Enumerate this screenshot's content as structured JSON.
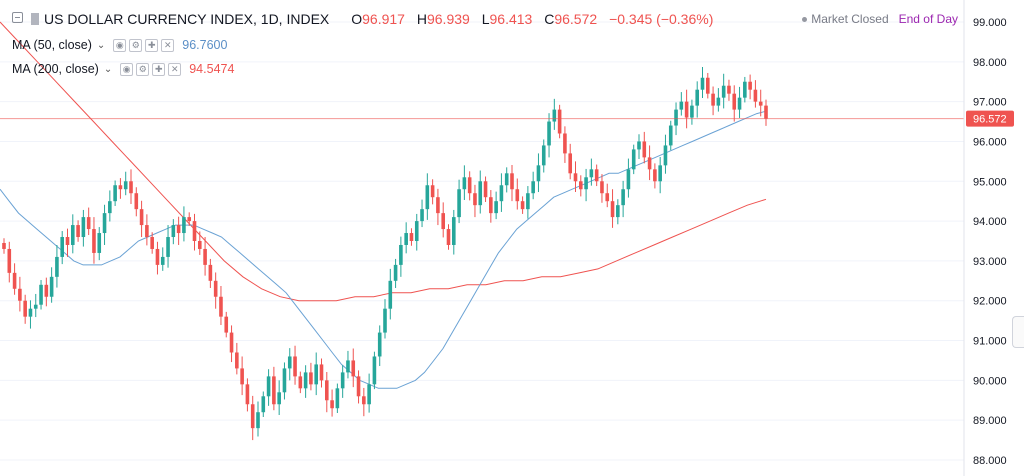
{
  "header": {
    "symbol": "US DOLLAR CURRENCY INDEX, 1D, INDEX",
    "ohlc": [
      {
        "key": "O",
        "value": "96.917"
      },
      {
        "key": "H",
        "value": "96.939"
      },
      {
        "key": "L",
        "value": "96.413"
      },
      {
        "key": "C",
        "value": "96.572"
      }
    ],
    "change": "−0.345 (−0.36%)",
    "market_status": "Market Closed",
    "session_mode": "End of Day"
  },
  "indicators": [
    {
      "label": "MA (50, close)",
      "value": "96.7600",
      "color": "#6aa2d4"
    },
    {
      "label": "MA (200, close)",
      "value": "94.5474",
      "color": "#ef5350"
    }
  ],
  "price_axis": {
    "labels": [
      "99.000",
      "98.000",
      "97.000",
      "96.000",
      "95.000",
      "94.000",
      "93.000",
      "92.000",
      "91.000",
      "90.000",
      "89.000",
      "88.000"
    ],
    "last_price_label": "96.572"
  },
  "colors": {
    "up": "#26a69a",
    "down": "#ef5350",
    "ma50": "#6aa2d4",
    "ma200": "#ef5350",
    "axis_text": "#131722",
    "grid": "#f0f3fa"
  },
  "chart_data": {
    "type": "candlestick",
    "title": "US DOLLAR CURRENCY INDEX, 1D, INDEX",
    "ylim": [
      88,
      99
    ],
    "last_price": 96.572,
    "series": [
      {
        "name": "Close",
        "values": [
          93.3,
          92.7,
          92.3,
          92.0,
          91.6,
          91.8,
          91.9,
          92.4,
          92.1,
          92.6,
          93.1,
          93.6,
          93.4,
          93.9,
          93.6,
          94.1,
          93.8,
          93.2,
          93.7,
          94.2,
          94.5,
          94.9,
          94.8,
          95.0,
          94.7,
          94.3,
          93.9,
          93.6,
          93.3,
          92.9,
          93.1,
          93.6,
          93.9,
          93.7,
          94.1,
          94.0,
          93.5,
          93.3,
          92.9,
          92.5,
          92.1,
          91.6,
          91.2,
          90.7,
          90.3,
          89.9,
          89.4,
          88.8,
          89.2,
          89.6,
          90.1,
          89.4,
          89.7,
          90.3,
          90.6,
          90.1,
          89.8,
          90.2,
          89.9,
          90.4,
          90.0,
          89.5,
          89.3,
          89.8,
          90.2,
          90.5,
          90.1,
          89.6,
          89.4,
          89.9,
          90.6,
          91.2,
          91.8,
          92.5,
          92.9,
          93.4,
          93.7,
          93.5,
          94.0,
          94.3,
          94.9,
          94.6,
          94.2,
          93.8,
          93.4,
          94.1,
          94.8,
          95.1,
          94.7,
          94.4,
          95.0,
          94.6,
          94.2,
          94.5,
          94.9,
          95.2,
          94.8,
          94.5,
          94.3,
          94.7,
          95.0,
          95.4,
          95.9,
          96.5,
          96.8,
          96.2,
          95.7,
          95.2,
          95.0,
          94.8,
          95.1,
          95.3,
          95.0,
          94.7,
          94.5,
          94.1,
          94.4,
          94.8,
          95.3,
          95.8,
          96.0,
          95.6,
          95.3,
          95.0,
          95.4,
          95.9,
          96.4,
          96.8,
          97.0,
          96.6,
          96.9,
          97.3,
          97.6,
          97.2,
          96.9,
          97.1,
          97.4,
          97.2,
          96.8,
          97.1,
          97.5,
          97.3,
          97.0,
          96.9,
          96.572
        ]
      },
      {
        "name": "MA (50, close)",
        "values": [
          94.8,
          94.5,
          94.2,
          94.0,
          93.8,
          93.6,
          93.4,
          93.2,
          93.0,
          92.9,
          92.9,
          92.9,
          93.0,
          93.1,
          93.3,
          93.5,
          93.6,
          93.7,
          93.8,
          93.9,
          93.9,
          93.9,
          93.8,
          93.7,
          93.6,
          93.4,
          93.2,
          93.0,
          92.8,
          92.6,
          92.4,
          92.2,
          91.9,
          91.6,
          91.3,
          91.0,
          90.7,
          90.4,
          90.2,
          90.0,
          89.9,
          89.8,
          89.8,
          89.8,
          89.9,
          90.0,
          90.2,
          90.5,
          90.8,
          91.2,
          91.6,
          92.0,
          92.4,
          92.8,
          93.2,
          93.5,
          93.8,
          94.0,
          94.2,
          94.4,
          94.6,
          94.7,
          94.8,
          94.9,
          95.0,
          95.1,
          95.2,
          95.2,
          95.3,
          95.4,
          95.5,
          95.6,
          95.7,
          95.8,
          95.9,
          96.0,
          96.1,
          96.2,
          96.3,
          96.4,
          96.5,
          96.6,
          96.7,
          96.76
        ]
      },
      {
        "name": "MA (200, close)",
        "values": [
          99.0,
          98.5,
          98.0,
          97.5,
          97.0,
          96.5,
          96.0,
          95.5,
          95.0,
          94.5,
          94.0,
          93.5,
          93.0,
          92.6,
          92.3,
          92.1,
          92.0,
          92.0,
          92.0,
          92.1,
          92.1,
          92.2,
          92.2,
          92.3,
          92.3,
          92.4,
          92.4,
          92.5,
          92.5,
          92.6,
          92.6,
          92.7,
          92.8,
          93.0,
          93.2,
          93.4,
          93.6,
          93.8,
          94.0,
          94.2,
          94.4,
          94.5474
        ]
      }
    ]
  }
}
